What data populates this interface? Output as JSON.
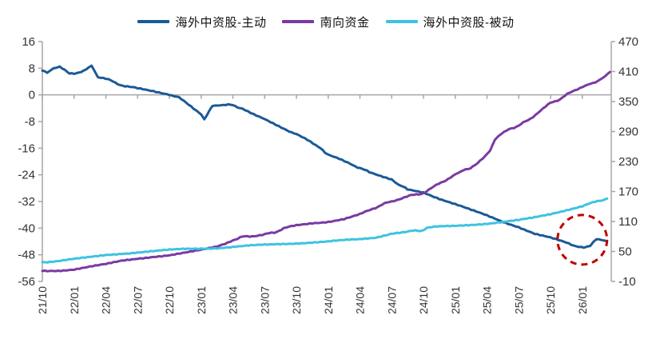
{
  "chart_data": {
    "type": "line",
    "title": "",
    "legend_position": "top-center",
    "grid": "zero-line-only",
    "colors": {
      "active": "#1A5A96",
      "southbound": "#7A3AA2",
      "passive": "#3EC3E0",
      "annotation": "#C00000",
      "axis": "#A6A6A6",
      "tick_text": "#333333"
    },
    "legend": [
      {
        "label": "海外中资股-主动",
        "color": "#1A5A96"
      },
      {
        "label": "南向资金",
        "color": "#7A3AA2"
      },
      {
        "label": "海外中资股-被动",
        "color": "#3EC3E0"
      }
    ],
    "x_unit": "quarter index from 2021-10 (each step = 3 months)",
    "x_tick_labels": [
      "21/10",
      "22/01",
      "22/04",
      "22/07",
      "22/10",
      "23/01",
      "23/04",
      "23/07",
      "23/10",
      "24/01",
      "24/04",
      "24/07",
      "24/10",
      "25/01",
      "25/04",
      "25/07",
      "25/10",
      "26/01"
    ],
    "left_axis": {
      "ticks": [
        16,
        8,
        0,
        -8,
        -16,
        -24,
        -32,
        -40,
        -48,
        -56
      ],
      "range": [
        -56,
        16
      ]
    },
    "right_axis": {
      "ticks": [
        470,
        410,
        350,
        290,
        230,
        170,
        110,
        50,
        -10
      ],
      "range": [
        -10,
        470
      ]
    },
    "series": [
      {
        "name": "海外中资股-主动",
        "axis": "left",
        "color": "#1A5A96",
        "points": [
          [
            0,
            7.3
          ],
          [
            0.15,
            6.6
          ],
          [
            0.35,
            7.8
          ],
          [
            0.55,
            8.6
          ],
          [
            0.7,
            7.4
          ],
          [
            0.85,
            6.3
          ],
          [
            1,
            6.5
          ],
          [
            1.3,
            7.1
          ],
          [
            1.55,
            8.6
          ],
          [
            1.75,
            5.4
          ],
          [
            2,
            4.9
          ],
          [
            2.3,
            3.6
          ],
          [
            2.6,
            2.6
          ],
          [
            3,
            1.9
          ],
          [
            3.5,
            1.1
          ],
          [
            4,
            0.2
          ],
          [
            4.3,
            -0.9
          ],
          [
            4.6,
            -2.7
          ],
          [
            4.85,
            -4.6
          ],
          [
            5,
            -5.9
          ],
          [
            5.1,
            -7.3
          ],
          [
            5.35,
            -3.3
          ],
          [
            5.7,
            -3.0
          ],
          [
            6,
            -3.1
          ],
          [
            6.3,
            -4.1
          ],
          [
            6.65,
            -5.7
          ],
          [
            7,
            -7.1
          ],
          [
            7.35,
            -8.8
          ],
          [
            7.7,
            -10.5
          ],
          [
            8,
            -11.9
          ],
          [
            8.35,
            -13.6
          ],
          [
            8.7,
            -15.7
          ],
          [
            8.9,
            -17.2
          ],
          [
            9,
            -17.9
          ],
          [
            9.35,
            -19.2
          ],
          [
            9.7,
            -20.8
          ],
          [
            10,
            -21.9
          ],
          [
            10.3,
            -23.3
          ],
          [
            10.65,
            -24.5
          ],
          [
            11,
            -25.6
          ],
          [
            11.2,
            -26.9
          ],
          [
            11.5,
            -28.4
          ],
          [
            12,
            -29.2
          ],
          [
            12.5,
            -31.1
          ],
          [
            13,
            -32.8
          ],
          [
            13.5,
            -34.6
          ],
          [
            14,
            -36.3
          ],
          [
            14.5,
            -38.1
          ],
          [
            15,
            -39.6
          ],
          [
            15.5,
            -41.6
          ],
          [
            16,
            -42.9
          ],
          [
            16.5,
            -44.5
          ],
          [
            16.8,
            -45.3
          ],
          [
            17.05,
            -45.7
          ],
          [
            17.25,
            -45.2
          ],
          [
            17.45,
            -43.4
          ],
          [
            17.6,
            -43.6
          ],
          [
            17.78,
            -43.9
          ]
        ]
      },
      {
        "name": "南向资金",
        "axis": "right",
        "color": "#7A3AA2",
        "points": [
          [
            0,
            11
          ],
          [
            0.5,
            12
          ],
          [
            1,
            14.5
          ],
          [
            1.5,
            19.5
          ],
          [
            2,
            24
          ],
          [
            2.5,
            31
          ],
          [
            3,
            36
          ],
          [
            3.5,
            40
          ],
          [
            4,
            42.5
          ],
          [
            4.5,
            47
          ],
          [
            5,
            52.5
          ],
          [
            5.5,
            60
          ],
          [
            5.75,
            66
          ],
          [
            6,
            73
          ],
          [
            6.3,
            79
          ],
          [
            6.6,
            81
          ],
          [
            7,
            84
          ],
          [
            7.3,
            88
          ],
          [
            7.6,
            96
          ],
          [
            8,
            102
          ],
          [
            8.5,
            107
          ],
          [
            9,
            110
          ],
          [
            9.5,
            115
          ],
          [
            10,
            124
          ],
          [
            10.4,
            135
          ],
          [
            10.7,
            144
          ],
          [
            11,
            150
          ],
          [
            11.4,
            159
          ],
          [
            11.7,
            163
          ],
          [
            12,
            167
          ],
          [
            12.4,
            182
          ],
          [
            12.7,
            193
          ],
          [
            13,
            203
          ],
          [
            13.2,
            211
          ],
          [
            13.4,
            215
          ],
          [
            13.7,
            226
          ],
          [
            13.95,
            240
          ],
          [
            14.1,
            252
          ],
          [
            14.25,
            275
          ],
          [
            14.45,
            285
          ],
          [
            14.7,
            295
          ],
          [
            15,
            302
          ],
          [
            15.3,
            313
          ],
          [
            15.6,
            327
          ],
          [
            16,
            347
          ],
          [
            16.3,
            355
          ],
          [
            16.6,
            367
          ],
          [
            17,
            380
          ],
          [
            17.2,
            384
          ],
          [
            17.5,
            392
          ],
          [
            17.75,
            402
          ],
          [
            17.87,
            409
          ]
        ]
      },
      {
        "name": "海外中资股-被动",
        "axis": "left",
        "color": "#3EC3E0",
        "points": [
          [
            0,
            -50.2
          ],
          [
            0.5,
            -49.8
          ],
          [
            1,
            -49.3
          ],
          [
            1.5,
            -48.8
          ],
          [
            2,
            -48.1
          ],
          [
            2.5,
            -47.6
          ],
          [
            3,
            -47.2
          ],
          [
            3.5,
            -46.9
          ],
          [
            4,
            -46.6
          ],
          [
            4.5,
            -46.3
          ],
          [
            5,
            -46.1
          ],
          [
            5.5,
            -45.9
          ],
          [
            6,
            -45.6
          ],
          [
            6.5,
            -45.3
          ],
          [
            7,
            -45.1
          ],
          [
            7.5,
            -44.8
          ],
          [
            8,
            -44.5
          ],
          [
            8.5,
            -44.2
          ],
          [
            9,
            -44.0
          ],
          [
            9.5,
            -43.7
          ],
          [
            10,
            -43.4
          ],
          [
            10.5,
            -42.8
          ],
          [
            11,
            -41.5
          ],
          [
            11.5,
            -41.0
          ],
          [
            11.95,
            -40.7
          ],
          [
            12.1,
            -39.9
          ],
          [
            12.5,
            -39.6
          ],
          [
            13,
            -39.3
          ],
          [
            13.5,
            -38.9
          ],
          [
            14,
            -38.6
          ],
          [
            14.5,
            -38.2
          ],
          [
            15,
            -37.7
          ],
          [
            15.5,
            -36.8
          ],
          [
            16,
            -35.7
          ],
          [
            16.5,
            -34.5
          ],
          [
            17,
            -33.4
          ],
          [
            17.4,
            -32.2
          ],
          [
            17.78,
            -31.1
          ]
        ]
      }
    ],
    "annotation": {
      "type": "dashed-circle",
      "color": "#C00000",
      "x": 17.0,
      "y_left_value": -43.5,
      "radius_px": 31
    }
  }
}
